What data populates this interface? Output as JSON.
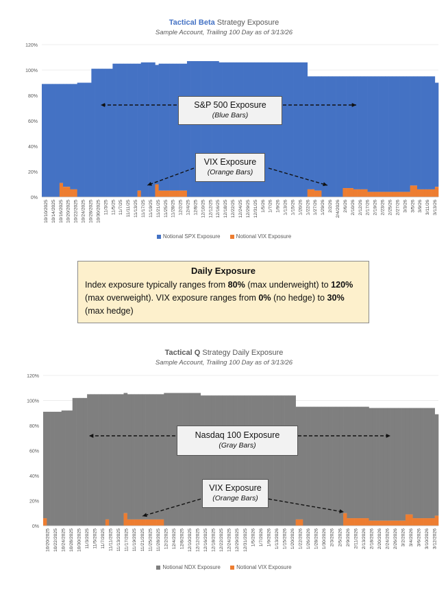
{
  "chart_data": [
    {
      "type": "bar",
      "stacked": true,
      "title_accent": "Tactical Beta",
      "title_rest": " Strategy Exposure",
      "subtitle": "Sample Account, Trailing 100 Day as of 3/13/26",
      "ylim": [
        0,
        120
      ],
      "yticks": [
        "0%",
        "20%",
        "40%",
        "60%",
        "80%",
        "100%",
        "120%"
      ],
      "xtick_labels": [
        "10/10/2025",
        "10/14/2025",
        "10/16/2025",
        "10/20/2025",
        "10/22/2025",
        "10/24/2025",
        "10/28/2025",
        "10/30/2025",
        "11/3/25",
        "11/5/25",
        "11/7/25",
        "11/11/25",
        "11/13/25",
        "11/17/25",
        "11/19/25",
        "11/21/25",
        "11/25/25",
        "11/28/25",
        "12/2/25",
        "12/4/25",
        "12/8/25",
        "12/10/25",
        "12/12/25",
        "12/16/25",
        "12/18/25",
        "12/22/25",
        "12/24/25",
        "12/29/25",
        "12/31/25",
        "1/5/26",
        "1/7/26",
        "1/9/26",
        "1/13/26",
        "1/15/26",
        "1/20/26",
        "1/22/26",
        "1/27/26",
        "1/29/26",
        "2/2/26",
        "2/4/2026",
        "2/6/26",
        "2/10/26",
        "2/12/26",
        "2/17/26",
        "2/19/26",
        "2/23/26",
        "2/25/26",
        "2/27/26",
        "3/3/26",
        "3/5/26",
        "3/9/26",
        "3/11/26",
        "3/13/26"
      ],
      "segments": [
        {
          "n": 5,
          "total": 89,
          "vix": 0
        },
        {
          "n": 1,
          "total": 89,
          "vix": 11
        },
        {
          "n": 2,
          "total": 89,
          "vix": 8
        },
        {
          "n": 2,
          "total": 89,
          "vix": 6
        },
        {
          "n": 4,
          "total": 90,
          "vix": 0
        },
        {
          "n": 6,
          "total": 101,
          "vix": 0
        },
        {
          "n": 7,
          "total": 105,
          "vix": 0
        },
        {
          "n": 1,
          "total": 105,
          "vix": 5
        },
        {
          "n": 4,
          "total": 106,
          "vix": 0
        },
        {
          "n": 1,
          "total": 104,
          "vix": 10
        },
        {
          "n": 8,
          "total": 105,
          "vix": 5
        },
        {
          "n": 9,
          "total": 107,
          "vix": 0
        },
        {
          "n": 7,
          "total": 106,
          "vix": 0
        },
        {
          "n": 10,
          "total": 106,
          "vix": 0
        },
        {
          "n": 8,
          "total": 106,
          "vix": 0
        },
        {
          "n": 2,
          "total": 95,
          "vix": 6
        },
        {
          "n": 2,
          "total": 95,
          "vix": 5
        },
        {
          "n": 6,
          "total": 95,
          "vix": 0
        },
        {
          "n": 3,
          "total": 95,
          "vix": 7
        },
        {
          "n": 4,
          "total": 95,
          "vix": 6
        },
        {
          "n": 12,
          "total": 95,
          "vix": 4
        },
        {
          "n": 2,
          "total": 95,
          "vix": 9
        },
        {
          "n": 5,
          "total": 95,
          "vix": 6
        },
        {
          "n": 1,
          "total": 90,
          "vix": 8
        }
      ],
      "series_names": [
        "Notional SPX Exposure",
        "Notional VIX Exposure"
      ],
      "colors": {
        "main": "#4472c4",
        "vix": "#ed7d31"
      }
    },
    {
      "type": "bar",
      "stacked": true,
      "title_accent": "Tactical Q",
      "title_rest": " Strategy Daily Exposure",
      "subtitle": "Sample Account, Trailing 100 Day as of 3/13/26",
      "ylim": [
        0,
        120
      ],
      "yticks": [
        "0%",
        "20%",
        "40%",
        "60%",
        "80%",
        "100%",
        "120%"
      ],
      "xtick_labels": [
        "10/20/2025",
        "10/22/2025",
        "10/24/2025",
        "10/28/2025",
        "10/30/2025",
        "11/3/2025",
        "11/5/2025",
        "11/7/2025",
        "11/11/2025",
        "11/13/2025",
        "11/17/2025",
        "11/19/2025",
        "11/21/2025",
        "11/25/2025",
        "11/28/2025",
        "12/2/2025",
        "12/4/2025",
        "12/8/2025",
        "12/10/2025",
        "12/12/2025",
        "12/16/2025",
        "12/18/2025",
        "12/22/2025",
        "12/24/2025",
        "12/29/2025",
        "12/31/2025",
        "1/5/2026",
        "1/7/2026",
        "1/9/2026",
        "1/13/2026",
        "1/15/2026",
        "1/20/2026",
        "1/22/2026",
        "1/26/2026",
        "1/28/2026",
        "1/30/2026",
        "2/3/2026",
        "2/5/2026",
        "2/9/2026",
        "2/11/2026",
        "2/13/2026",
        "2/18/2026",
        "2/20/2026",
        "2/24/2026",
        "2/26/2026",
        "3/2/2026",
        "3/4/2026",
        "3/6/2026",
        "3/10/2026",
        "3/12/2026"
      ],
      "segments": [
        {
          "n": 1,
          "total": 91,
          "vix": 6
        },
        {
          "n": 4,
          "total": 91,
          "vix": 0
        },
        {
          "n": 3,
          "total": 92,
          "vix": 0
        },
        {
          "n": 4,
          "total": 102,
          "vix": 0
        },
        {
          "n": 5,
          "total": 105,
          "vix": 0
        },
        {
          "n": 1,
          "total": 105,
          "vix": 5
        },
        {
          "n": 4,
          "total": 105,
          "vix": 0
        },
        {
          "n": 1,
          "total": 106,
          "vix": 10
        },
        {
          "n": 10,
          "total": 105,
          "vix": 5
        },
        {
          "n": 10,
          "total": 106,
          "vix": 0
        },
        {
          "n": 14,
          "total": 104,
          "vix": 0
        },
        {
          "n": 12,
          "total": 104,
          "vix": 0
        },
        {
          "n": 2,
          "total": 95,
          "vix": 5
        },
        {
          "n": 11,
          "total": 95,
          "vix": 0
        },
        {
          "n": 1,
          "total": 95,
          "vix": 10
        },
        {
          "n": 6,
          "total": 95,
          "vix": 6
        },
        {
          "n": 10,
          "total": 94,
          "vix": 4
        },
        {
          "n": 2,
          "total": 94,
          "vix": 9
        },
        {
          "n": 6,
          "total": 94,
          "vix": 6
        },
        {
          "n": 1,
          "total": 89,
          "vix": 8
        }
      ],
      "series_names": [
        "Notional NDX Exposure",
        "Notional VIX Exposure"
      ],
      "colors": {
        "main": "#7f7f7f",
        "vix": "#ed7d31"
      }
    }
  ],
  "callouts": {
    "spx": {
      "title": "S&P 500 Exposure",
      "sub": "(Blue Bars)"
    },
    "vix1": {
      "title": "VIX Exposure",
      "sub": "(Orange Bars)"
    },
    "ndx": {
      "title": "Nasdaq 100 Exposure",
      "sub": "(Gray Bars)"
    },
    "vix2": {
      "title": "VIX Exposure",
      "sub": "(Orange Bars)"
    }
  },
  "info_box": {
    "title": "Daily Exposure",
    "t1": "Index exposure typically ranges from ",
    "b1": "80%",
    "t2": " (max underweight) to ",
    "b2": "120%",
    "t3": " (max overweight).  VIX exposure ranges from ",
    "b3": "0%",
    "t4": " (no hedge) to ",
    "b4": "30%",
    "t5": " (max hedge)"
  },
  "legend": {
    "chart1": [
      "Notional SPX Exposure",
      "Notional VIX Exposure"
    ],
    "chart2": [
      "Notional NDX Exposure",
      "Notional VIX Exposure"
    ]
  }
}
